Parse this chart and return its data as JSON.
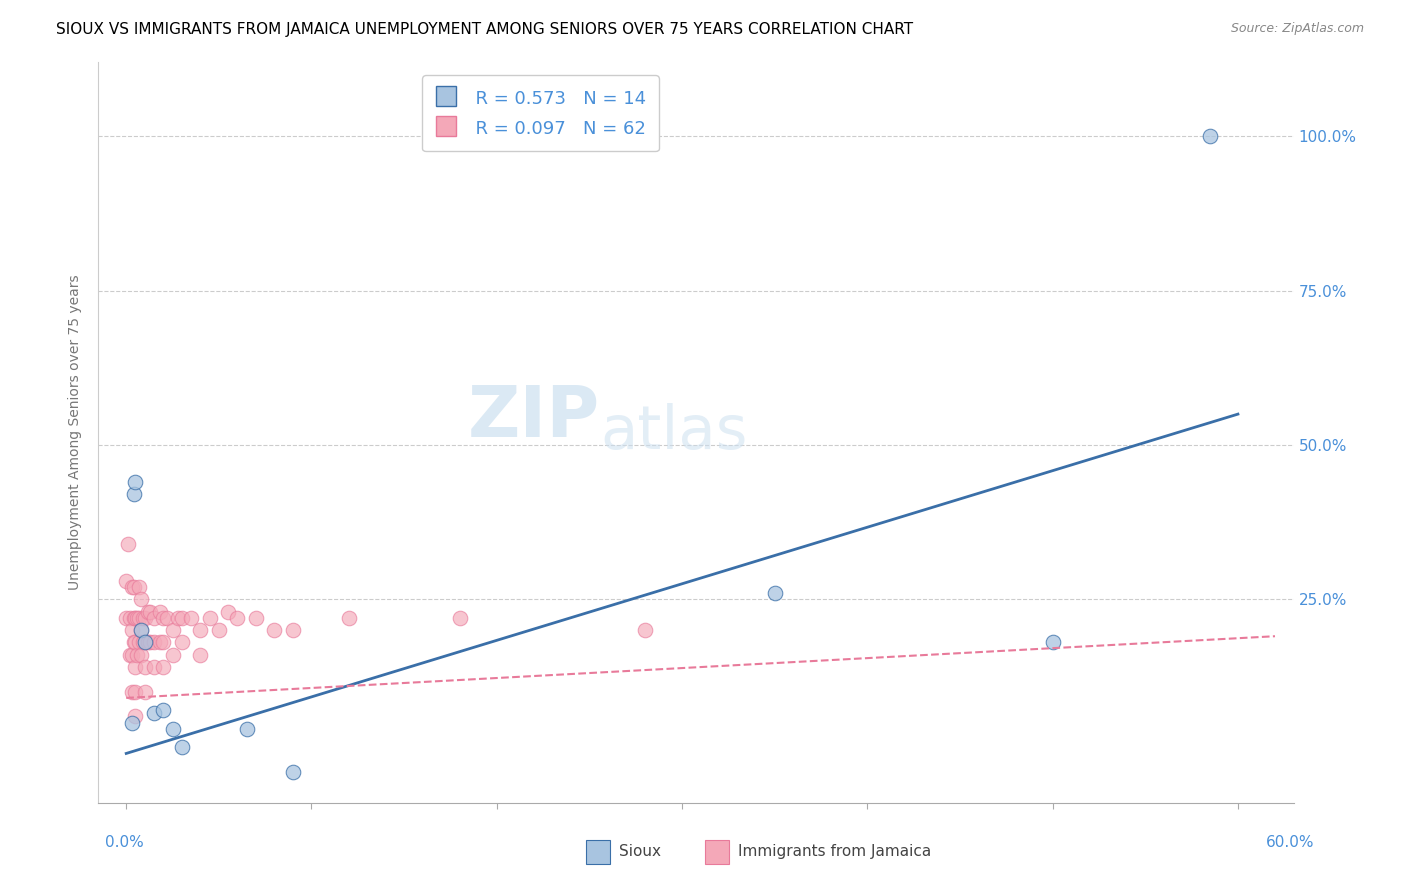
{
  "title": "SIOUX VS IMMIGRANTS FROM JAMAICA UNEMPLOYMENT AMONG SENIORS OVER 75 YEARS CORRELATION CHART",
  "source": "Source: ZipAtlas.com",
  "ylabel": "Unemployment Among Seniors over 75 years",
  "ytick_labels": [
    "100.0%",
    "75.0%",
    "50.0%",
    "25.0%"
  ],
  "ytick_vals": [
    1.0,
    0.75,
    0.5,
    0.25
  ],
  "xtick_vals": [
    0.0,
    0.1,
    0.2,
    0.3,
    0.4,
    0.5,
    0.6
  ],
  "xlim": [
    -0.015,
    0.63
  ],
  "ylim": [
    -0.08,
    1.12
  ],
  "legend_labels": [
    "Sioux",
    "Immigrants from Jamaica"
  ],
  "blue_R": "R = 0.573",
  "blue_N": "N = 14",
  "pink_R": "R = 0.097",
  "pink_N": "N = 62",
  "blue_color": "#a8c4e0",
  "pink_color": "#f4a8b8",
  "blue_line_color": "#3a6fa8",
  "pink_line_color": "#e87a9a",
  "watermark_zip": "ZIP",
  "watermark_atlas": "atlas",
  "title_fontsize": 11,
  "source_fontsize": 9,
  "legend_color": "#4a90d9",
  "blue_scatter": [
    [
      0.003,
      0.05
    ],
    [
      0.004,
      0.42
    ],
    [
      0.005,
      0.44
    ],
    [
      0.008,
      0.2
    ],
    [
      0.01,
      0.18
    ],
    [
      0.015,
      0.065
    ],
    [
      0.02,
      0.07
    ],
    [
      0.025,
      0.04
    ],
    [
      0.03,
      0.01
    ],
    [
      0.065,
      0.04
    ],
    [
      0.09,
      -0.03
    ],
    [
      0.35,
      0.26
    ],
    [
      0.5,
      0.18
    ],
    [
      0.585,
      1.0
    ]
  ],
  "pink_scatter": [
    [
      0.0,
      0.28
    ],
    [
      0.0,
      0.22
    ],
    [
      0.001,
      0.34
    ],
    [
      0.002,
      0.22
    ],
    [
      0.002,
      0.16
    ],
    [
      0.003,
      0.27
    ],
    [
      0.003,
      0.2
    ],
    [
      0.003,
      0.16
    ],
    [
      0.003,
      0.1
    ],
    [
      0.004,
      0.27
    ],
    [
      0.004,
      0.22
    ],
    [
      0.004,
      0.18
    ],
    [
      0.005,
      0.22
    ],
    [
      0.005,
      0.18
    ],
    [
      0.005,
      0.14
    ],
    [
      0.005,
      0.1
    ],
    [
      0.005,
      0.06
    ],
    [
      0.006,
      0.22
    ],
    [
      0.006,
      0.16
    ],
    [
      0.007,
      0.27
    ],
    [
      0.007,
      0.22
    ],
    [
      0.007,
      0.18
    ],
    [
      0.008,
      0.25
    ],
    [
      0.008,
      0.2
    ],
    [
      0.008,
      0.16
    ],
    [
      0.009,
      0.22
    ],
    [
      0.009,
      0.18
    ],
    [
      0.01,
      0.22
    ],
    [
      0.01,
      0.18
    ],
    [
      0.01,
      0.14
    ],
    [
      0.01,
      0.1
    ],
    [
      0.012,
      0.23
    ],
    [
      0.012,
      0.18
    ],
    [
      0.013,
      0.23
    ],
    [
      0.013,
      0.18
    ],
    [
      0.015,
      0.22
    ],
    [
      0.015,
      0.18
    ],
    [
      0.015,
      0.14
    ],
    [
      0.018,
      0.23
    ],
    [
      0.018,
      0.18
    ],
    [
      0.02,
      0.22
    ],
    [
      0.02,
      0.18
    ],
    [
      0.02,
      0.14
    ],
    [
      0.022,
      0.22
    ],
    [
      0.025,
      0.2
    ],
    [
      0.025,
      0.16
    ],
    [
      0.028,
      0.22
    ],
    [
      0.03,
      0.22
    ],
    [
      0.03,
      0.18
    ],
    [
      0.035,
      0.22
    ],
    [
      0.04,
      0.2
    ],
    [
      0.04,
      0.16
    ],
    [
      0.045,
      0.22
    ],
    [
      0.05,
      0.2
    ],
    [
      0.055,
      0.23
    ],
    [
      0.06,
      0.22
    ],
    [
      0.07,
      0.22
    ],
    [
      0.08,
      0.2
    ],
    [
      0.09,
      0.2
    ],
    [
      0.12,
      0.22
    ],
    [
      0.18,
      0.22
    ],
    [
      0.28,
      0.2
    ]
  ],
  "blue_line_x": [
    0.0,
    0.6
  ],
  "blue_line_y": [
    0.0,
    0.55
  ],
  "pink_line_x": [
    0.0,
    0.62
  ],
  "pink_line_y": [
    0.09,
    0.19
  ]
}
